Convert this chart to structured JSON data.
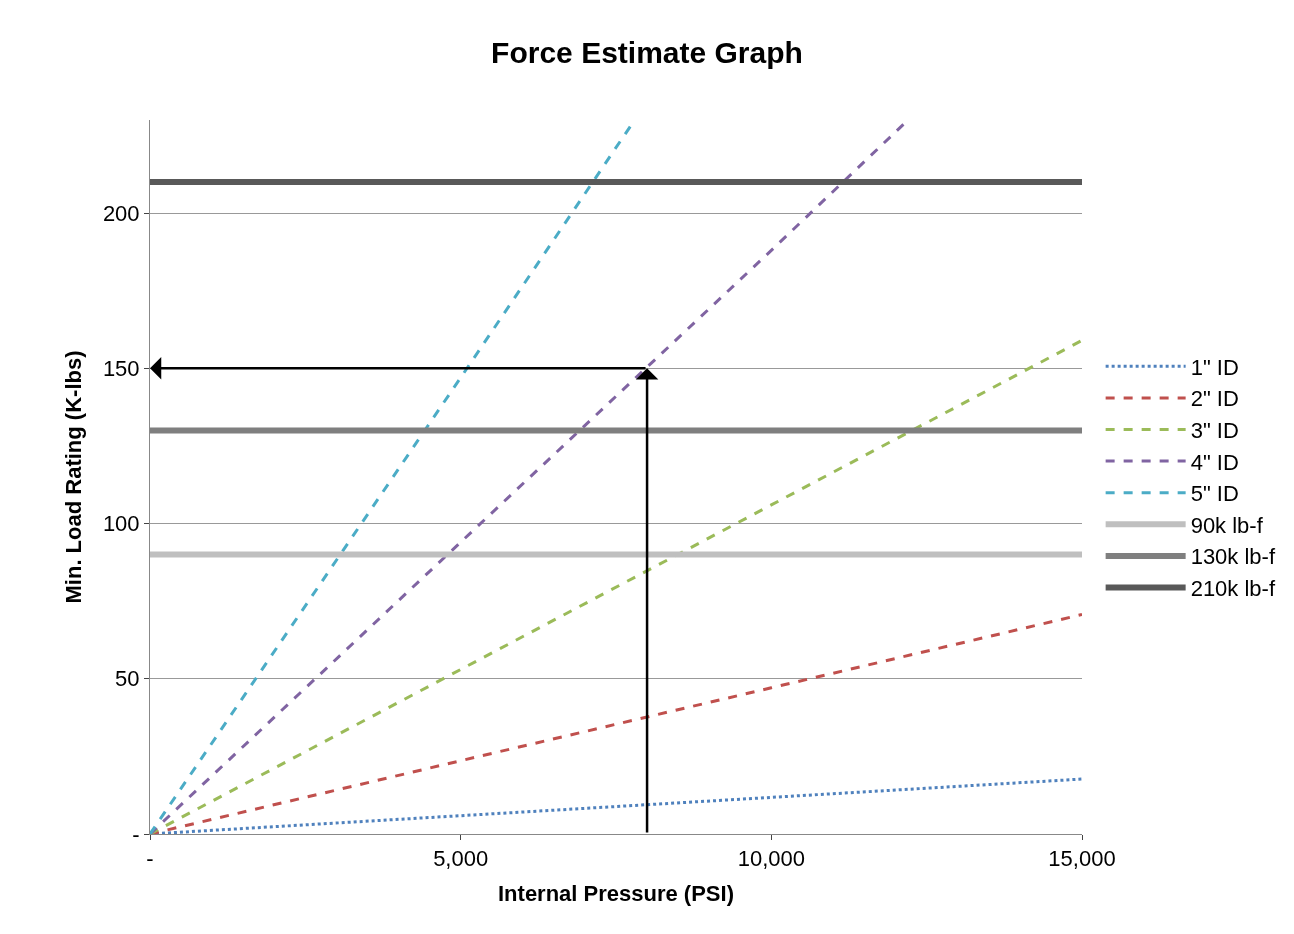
{
  "chart_data": {
    "type": "line",
    "title": "Force Estimate Graph",
    "xlabel": "Internal Pressure (PSI)",
    "ylabel": "Min. Load Rating (K-lbs)",
    "xlim": [
      0,
      15000
    ],
    "ylim": [
      0,
      230
    ],
    "xticks": [
      {
        "value": 0,
        "label": "-"
      },
      {
        "value": 5000,
        "label": "5,000"
      },
      {
        "value": 10000,
        "label": "10,000"
      },
      {
        "value": 15000,
        "label": "15,000"
      }
    ],
    "yticks": [
      {
        "value": 0,
        "label": "-"
      },
      50,
      100,
      150,
      200
    ],
    "grid": "y",
    "legend": "right",
    "series": [
      {
        "name": "1\" ID",
        "color": "#4f81bd",
        "line_style": "dotted",
        "x": [
          0,
          5000,
          10000,
          15000
        ],
        "values": [
          0,
          5.9,
          11.8,
          17.7
        ]
      },
      {
        "name": "2\" ID",
        "color": "#c0504d",
        "line_style": "dashed",
        "x": [
          0,
          5000,
          10000,
          15000
        ],
        "values": [
          0,
          23.6,
          47.1,
          70.7
        ]
      },
      {
        "name": "3\" ID",
        "color": "#9bbb59",
        "line_style": "dashed",
        "x": [
          0,
          5000,
          10000,
          15000
        ],
        "values": [
          0,
          53,
          106,
          159
        ]
      },
      {
        "name": "4\" ID",
        "color": "#8064a2",
        "line_style": "dashed",
        "x": [
          0,
          5000,
          10000,
          12200
        ],
        "values": [
          0,
          94,
          188,
          230
        ]
      },
      {
        "name": "5\" ID",
        "color": "#4bacc6",
        "line_style": "dashed",
        "x": [
          0,
          5000,
          7800
        ],
        "values": [
          0,
          147,
          230
        ]
      },
      {
        "name": "90k lb-f",
        "color": "#bfbfbf",
        "line_style": "solid",
        "x": [
          0,
          15000
        ],
        "values": [
          90,
          90
        ]
      },
      {
        "name": "130k lb-f",
        "color": "#7f7f7f",
        "line_style": "solid",
        "x": [
          0,
          15000
        ],
        "values": [
          130,
          130
        ]
      },
      {
        "name": "210k lb-f",
        "color": "#595959",
        "line_style": "solid",
        "x": [
          0,
          15000
        ],
        "values": [
          210,
          210
        ]
      }
    ]
  }
}
